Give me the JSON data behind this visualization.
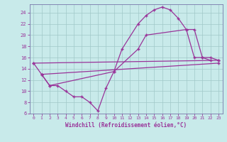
{
  "xlabel": "Windchill (Refroidissement éolien,°C)",
  "bg_color": "#c8eaea",
  "grid_color": "#a0c8c8",
  "line_color": "#993399",
  "spine_color": "#7777aa",
  "xlim": [
    -0.5,
    23.5
  ],
  "ylim": [
    6,
    25.5
  ],
  "xticks": [
    0,
    1,
    2,
    3,
    4,
    5,
    6,
    7,
    8,
    9,
    10,
    11,
    12,
    13,
    14,
    15,
    16,
    17,
    18,
    19,
    20,
    21,
    22,
    23
  ],
  "yticks": [
    6,
    8,
    10,
    12,
    14,
    16,
    18,
    20,
    22,
    24
  ],
  "curve1_x": [
    0,
    1,
    2,
    3,
    4,
    5,
    6,
    7,
    8,
    9,
    10,
    11,
    13,
    14,
    15,
    16,
    17,
    18,
    19,
    20,
    21,
    22
  ],
  "curve1_y": [
    15,
    13,
    11,
    11,
    10,
    9,
    9,
    8,
    6.5,
    10.5,
    13.5,
    17.5,
    22,
    23.5,
    24.5,
    25,
    24.5,
    23,
    21,
    16,
    16,
    15.5
  ],
  "curve2_x": [
    1,
    2,
    10,
    13,
    14,
    19,
    20,
    21,
    22,
    23
  ],
  "curve2_y": [
    13,
    11,
    13.5,
    17.5,
    20,
    21,
    21,
    16,
    16,
    15.5
  ],
  "curve3_x": [
    0,
    23
  ],
  "curve3_y": [
    15,
    15.5
  ],
  "curve4_x": [
    1,
    23
  ],
  "curve4_y": [
    13,
    15
  ]
}
